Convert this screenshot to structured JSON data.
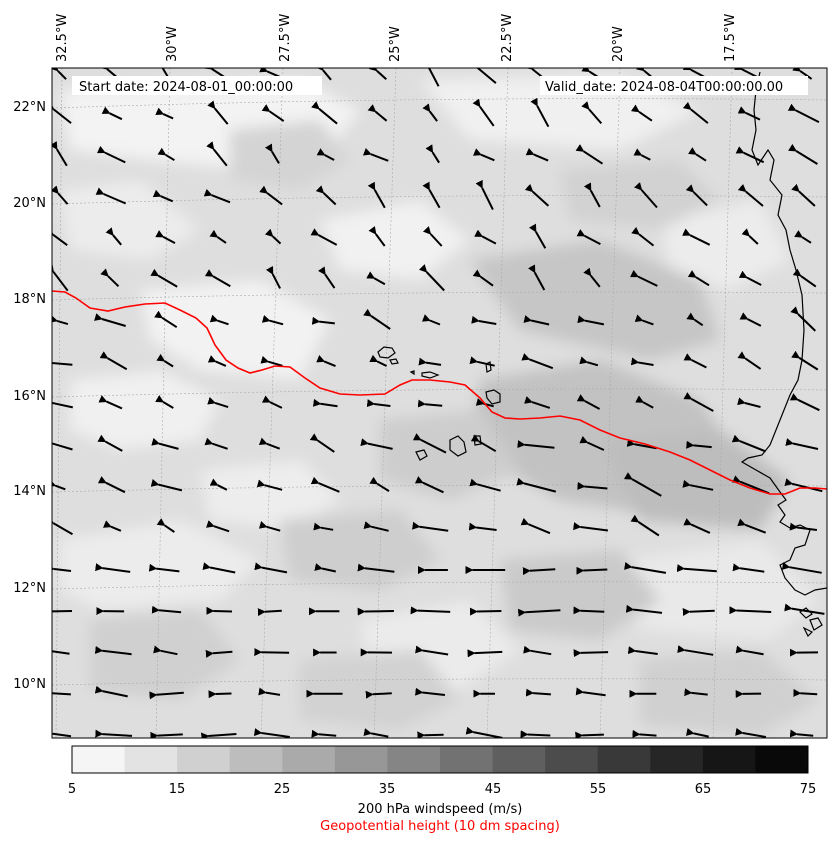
{
  "header": {
    "start_label": "Start date: 2024-08-01_00:00:00",
    "valid_label": "Valid_date: 2024-08-04T00:00:00.00"
  },
  "axes": {
    "lon_labels": [
      "32.5°W",
      "30°W",
      "27.5°W",
      "25°W",
      "22.5°W",
      "20°W",
      "17.5°W"
    ],
    "lat_labels": [
      "22°N",
      "20°N",
      "18°N",
      "16°N",
      "14°N",
      "12°N",
      "10°N"
    ]
  },
  "colorbar": {
    "ticks": [
      "5",
      "15",
      "25",
      "35",
      "45",
      "55",
      "65",
      "75"
    ],
    "colors": [
      "#f5f5f5",
      "#e3e3e3",
      "#d0d0d0",
      "#bdbdbd",
      "#aaaaaa",
      "#979797",
      "#858585",
      "#727272",
      "#5f5f5f",
      "#4c4c4c",
      "#393939",
      "#262626",
      "#161616",
      "#090909"
    ],
    "label": "200 hPa windspeed (m/s)"
  },
  "legend": {
    "geopotential_label": "Geopotential height (10 dm spacing)",
    "geopotential_color": "#ff0000"
  },
  "map": {
    "background_color": "#dcdcdc",
    "coast_color": "#000000"
  }
}
